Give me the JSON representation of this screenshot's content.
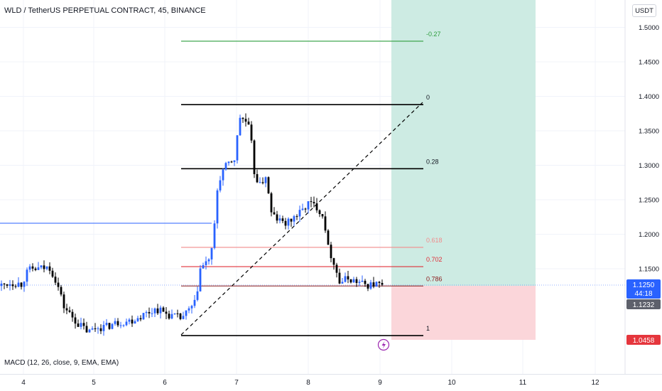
{
  "header": {
    "title": "WLD / TetherUS PERPETUAL CONTRACT, 45, BINANCE",
    "currency_button": "USDT"
  },
  "indicator": {
    "macd_label": "MACD (12, 26, close, 9, EMA, EMA)"
  },
  "price_axis": {
    "ticks": [
      "1.5000",
      "1.4500",
      "1.4000",
      "1.3500",
      "1.3000",
      "1.2500",
      "1.2000",
      "1.1500"
    ],
    "tick_values": [
      1.5,
      1.45,
      1.4,
      1.35,
      1.3,
      1.25,
      1.2,
      1.15
    ]
  },
  "time_axis": {
    "ticks": [
      "4",
      "5",
      "6",
      "7",
      "8",
      "9",
      "10",
      "11",
      "12"
    ]
  },
  "price_tags": {
    "last_price": "1.1250",
    "countdown": "44:18",
    "reference_price": "1.1232",
    "stop_price": "1.0458"
  },
  "fib_levels": [
    {
      "label": "-0.27",
      "value": 1.48,
      "color": "#2e9e3e"
    },
    {
      "label": "0",
      "value": 1.388,
      "color": "#000000"
    },
    {
      "label": "0.28",
      "value": 1.295,
      "color": "#000000"
    },
    {
      "label": "0.618",
      "value": 1.181,
      "color": "#f28b8b"
    },
    {
      "label": "0.702",
      "value": 1.153,
      "color": "#e0303a"
    },
    {
      "label": "0.786",
      "value": 1.125,
      "color": "#8b1a1a"
    },
    {
      "label": "1",
      "value": 1.053,
      "color": "#000000"
    }
  ],
  "colors": {
    "bull": "#2962ff",
    "bear": "#000000",
    "profit_zone": "#cdebe3",
    "loss_zone": "#fbd6da",
    "last_tag": "#2962ff",
    "ref_tag": "#5d606b",
    "stop_tag": "#e5363d"
  },
  "icons": {
    "event_marker": "lightning-icon"
  }
}
